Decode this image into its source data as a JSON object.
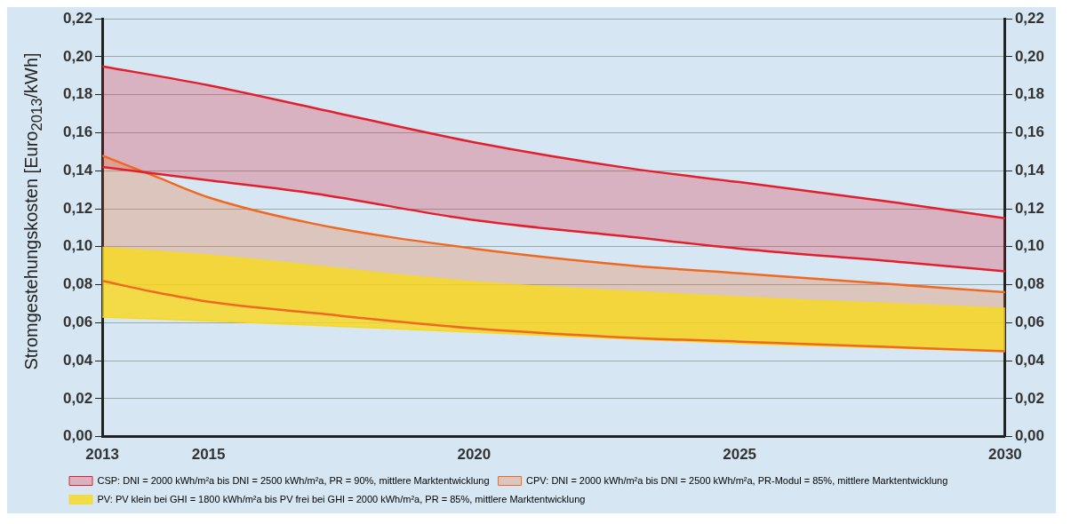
{
  "chart_data": {
    "type": "line",
    "ylabel": "Stromgestehungskosten [Euro$_{2013}$/kWh]",
    "xlim": [
      2013,
      2030
    ],
    "xticks": [
      2013,
      2015,
      2020,
      2025,
      2030
    ],
    "ylim": [
      0,
      0.22
    ],
    "yticks": [
      {
        "value": 0,
        "label": "0,00"
      },
      {
        "value": 0.02,
        "label": "0,02"
      },
      {
        "value": 0.04,
        "label": "0,04"
      },
      {
        "value": 0.06,
        "label": "0,06"
      },
      {
        "value": 0.08,
        "label": "0,08"
      },
      {
        "value": 0.1,
        "label": "0,10"
      },
      {
        "value": 0.12,
        "label": "0,12"
      },
      {
        "value": 0.14,
        "label": "0,14"
      },
      {
        "value": 0.16,
        "label": "0,16"
      },
      {
        "value": 0.18,
        "label": "0,18"
      },
      {
        "value": 0.2,
        "label": "0,20"
      },
      {
        "value": 0.22,
        "label": "0,22"
      }
    ],
    "y2lim": [
      0,
      0.22
    ],
    "y2ticks": [
      {
        "value": 0,
        "label": "0,00"
      },
      {
        "value": 0.02,
        "label": "0,02"
      },
      {
        "value": 0.04,
        "label": "0,04"
      },
      {
        "value": 0.06,
        "label": "0,06"
      },
      {
        "value": 0.08,
        "label": "0,08"
      },
      {
        "value": 0.1,
        "label": "0,10"
      },
      {
        "value": 0.12,
        "label": "0,12"
      },
      {
        "value": 0.14,
        "label": "0,14"
      },
      {
        "value": 0.16,
        "label": "0,16"
      },
      {
        "value": 0.18,
        "label": "0,18"
      },
      {
        "value": 0.2,
        "label": "0,20"
      },
      {
        "value": 0.22,
        "label": "0,22"
      }
    ],
    "grid": "y",
    "legend": "bottom",
    "series": [
      {
        "name": "CSP: DNI = 2000 kWh/m²a bis DNI = 2500 kWh/m²a, PR = 90%, mittlere Marktentwicklung",
        "color": "#e0202e",
        "line_style": "solid",
        "x": [
          2013,
          2015,
          2017,
          2020,
          2023,
          2025,
          2028,
          2030
        ],
        "values": [
          0.142,
          0.135,
          0.128,
          0.114,
          0.105,
          0.099,
          0.092,
          0.087
        ],
        "lower": [
          0.142,
          0.135,
          0.128,
          0.114,
          0.105,
          0.099,
          0.092,
          0.087
        ],
        "upper": [
          0.195,
          0.185,
          0.173,
          0.155,
          0.141,
          0.134,
          0.123,
          0.115
        ]
      },
      {
        "color": "#e0202e",
        "line_style": "solid",
        "x": [
          2013,
          2015,
          2017,
          2020,
          2023,
          2025,
          2028,
          2030
        ],
        "values": [
          0.195,
          0.185,
          0.173,
          0.155,
          0.141,
          0.134,
          0.123,
          0.115
        ]
      },
      {
        "name": "CPV: DNI = 2000 kWh/m²a bis DNI = 2500 kWh/m²a, PR-Modul = 85%, mittlere Marktentwicklung",
        "color": "#ee6a22",
        "line_style": "solid",
        "x": [
          2013,
          2014,
          2015,
          2017,
          2020,
          2023,
          2025,
          2028,
          2030
        ],
        "values": [
          0.082,
          0.076,
          0.071,
          0.065,
          0.057,
          0.052,
          0.05,
          0.047,
          0.045
        ],
        "lower": [
          0.082,
          0.076,
          0.071,
          0.065,
          0.057,
          0.052,
          0.05,
          0.047,
          0.045
        ],
        "upper": [
          0.148,
          0.137,
          0.126,
          0.112,
          0.099,
          0.09,
          0.086,
          0.08,
          0.076
        ]
      },
      {
        "color": "#ee6a22",
        "line_style": "solid",
        "x": [
          2013,
          2014,
          2015,
          2017,
          2020,
          2023,
          2025,
          2028,
          2030
        ],
        "values": [
          0.148,
          0.137,
          0.126,
          0.112,
          0.099,
          0.09,
          0.086,
          0.08,
          0.076
        ]
      },
      {
        "name": "PV: PV klein bei GHI = 1800 kWh/m²a bis PV frei bei GHI = 2000 kWh/m²a, PR = 85%, mittlere Marktentwicklung",
        "color": "#f9d81c",
        "x": [
          2013,
          2015,
          2020,
          2025,
          2030
        ],
        "values": [
          0.063,
          0.061,
          0.055,
          0.049,
          0.045
        ],
        "lower": [
          0.063,
          0.061,
          0.055,
          0.049,
          0.045
        ],
        "upper": [
          0.1,
          0.096,
          0.082,
          0.074,
          0.068
        ]
      }
    ]
  }
}
